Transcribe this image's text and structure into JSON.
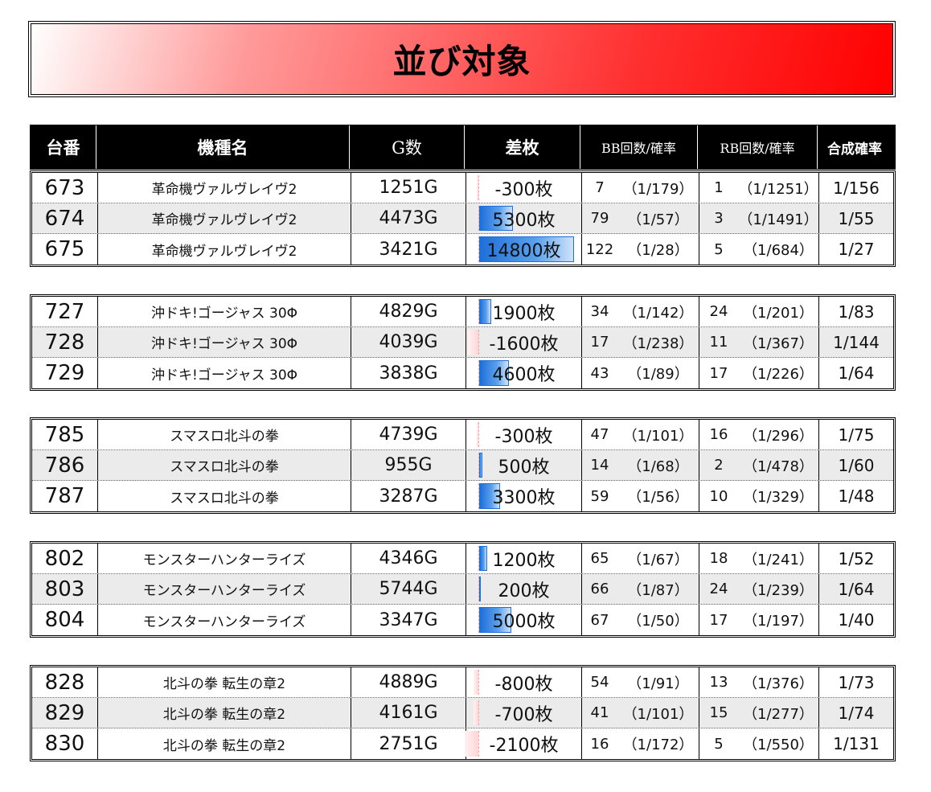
{
  "title": "並び対象",
  "headers": {
    "no": "台番",
    "name": "機種名",
    "games": "G数",
    "diff": "差枚",
    "bb": "BB回数/確率",
    "rb": "RB回数/確率",
    "comb": "合成確率"
  },
  "max_diff": 14800,
  "groups": [
    {
      "rows": [
        {
          "no": "673",
          "name": "革命機ヴァルヴレイヴ2",
          "games": "1251G",
          "diff": "-300枚",
          "diff_value": -300,
          "bb": "7",
          "bb_rate": "（1/179）",
          "rb": "1",
          "rb_rate": "（1/1251）",
          "comb": "1/156"
        },
        {
          "no": "674",
          "name": "革命機ヴァルヴレイヴ2",
          "games": "4473G",
          "diff": "5300枚",
          "diff_value": 5300,
          "bb": "79",
          "bb_rate": "（1/57）",
          "rb": "3",
          "rb_rate": "（1/1491）",
          "comb": "1/55"
        },
        {
          "no": "675",
          "name": "革命機ヴァルヴレイヴ2",
          "games": "3421G",
          "diff": "14800枚",
          "diff_value": 14800,
          "bb": "122",
          "bb_rate": "（1/28）",
          "rb": "5",
          "rb_rate": "（1/684）",
          "comb": "1/27"
        }
      ]
    },
    {
      "rows": [
        {
          "no": "727",
          "name": "沖ドキ!ゴージャス 30Φ",
          "games": "4829G",
          "diff": "1900枚",
          "diff_value": 1900,
          "bb": "34",
          "bb_rate": "（1/142）",
          "rb": "24",
          "rb_rate": "（1/201）",
          "comb": "1/83"
        },
        {
          "no": "728",
          "name": "沖ドキ!ゴージャス 30Φ",
          "games": "4039G",
          "diff": "-1600枚",
          "diff_value": -1600,
          "bb": "17",
          "bb_rate": "（1/238）",
          "rb": "11",
          "rb_rate": "（1/367）",
          "comb": "1/144"
        },
        {
          "no": "729",
          "name": "沖ドキ!ゴージャス 30Φ",
          "games": "3838G",
          "diff": "4600枚",
          "diff_value": 4600,
          "bb": "43",
          "bb_rate": "（1/89）",
          "rb": "17",
          "rb_rate": "（1/226）",
          "comb": "1/64"
        }
      ]
    },
    {
      "rows": [
        {
          "no": "785",
          "name": "スマスロ北斗の拳",
          "games": "4739G",
          "diff": "-300枚",
          "diff_value": -300,
          "bb": "47",
          "bb_rate": "（1/101）",
          "rb": "16",
          "rb_rate": "（1/296）",
          "comb": "1/75"
        },
        {
          "no": "786",
          "name": "スマスロ北斗の拳",
          "games": "955G",
          "diff": "500枚",
          "diff_value": 500,
          "bb": "14",
          "bb_rate": "（1/68）",
          "rb": "2",
          "rb_rate": "（1/478）",
          "comb": "1/60"
        },
        {
          "no": "787",
          "name": "スマスロ北斗の拳",
          "games": "3287G",
          "diff": "3300枚",
          "diff_value": 3300,
          "bb": "59",
          "bb_rate": "（1/56）",
          "rb": "10",
          "rb_rate": "（1/329）",
          "comb": "1/48"
        }
      ]
    },
    {
      "rows": [
        {
          "no": "802",
          "name": "モンスターハンターライズ",
          "games": "4346G",
          "diff": "1200枚",
          "diff_value": 1200,
          "bb": "65",
          "bb_rate": "（1/67）",
          "rb": "18",
          "rb_rate": "（1/241）",
          "comb": "1/52"
        },
        {
          "no": "803",
          "name": "モンスターハンターライズ",
          "games": "5744G",
          "diff": "200枚",
          "diff_value": 200,
          "bb": "66",
          "bb_rate": "（1/87）",
          "rb": "24",
          "rb_rate": "（1/239）",
          "comb": "1/64"
        },
        {
          "no": "804",
          "name": "モンスターハンターライズ",
          "games": "3347G",
          "diff": "5000枚",
          "diff_value": 5000,
          "bb": "67",
          "bb_rate": "（1/50）",
          "rb": "17",
          "rb_rate": "（1/197）",
          "comb": "1/40"
        }
      ]
    },
    {
      "rows": [
        {
          "no": "828",
          "name": "北斗の拳 転生の章2",
          "games": "4889G",
          "diff": "-800枚",
          "diff_value": -800,
          "bb": "54",
          "bb_rate": "（1/91）",
          "rb": "13",
          "rb_rate": "（1/376）",
          "comb": "1/73"
        },
        {
          "no": "829",
          "name": "北斗の拳 転生の章2",
          "games": "4161G",
          "diff": "-700枚",
          "diff_value": -700,
          "bb": "41",
          "bb_rate": "（1/101）",
          "rb": "15",
          "rb_rate": "（1/277）",
          "comb": "1/74"
        },
        {
          "no": "830",
          "name": "北斗の拳 転生の章2",
          "games": "2751G",
          "diff": "-2100枚",
          "diff_value": -2100,
          "bb": "16",
          "bb_rate": "（1/172）",
          "rb": "5",
          "rb_rate": "（1/550）",
          "comb": "1/131"
        }
      ]
    }
  ]
}
